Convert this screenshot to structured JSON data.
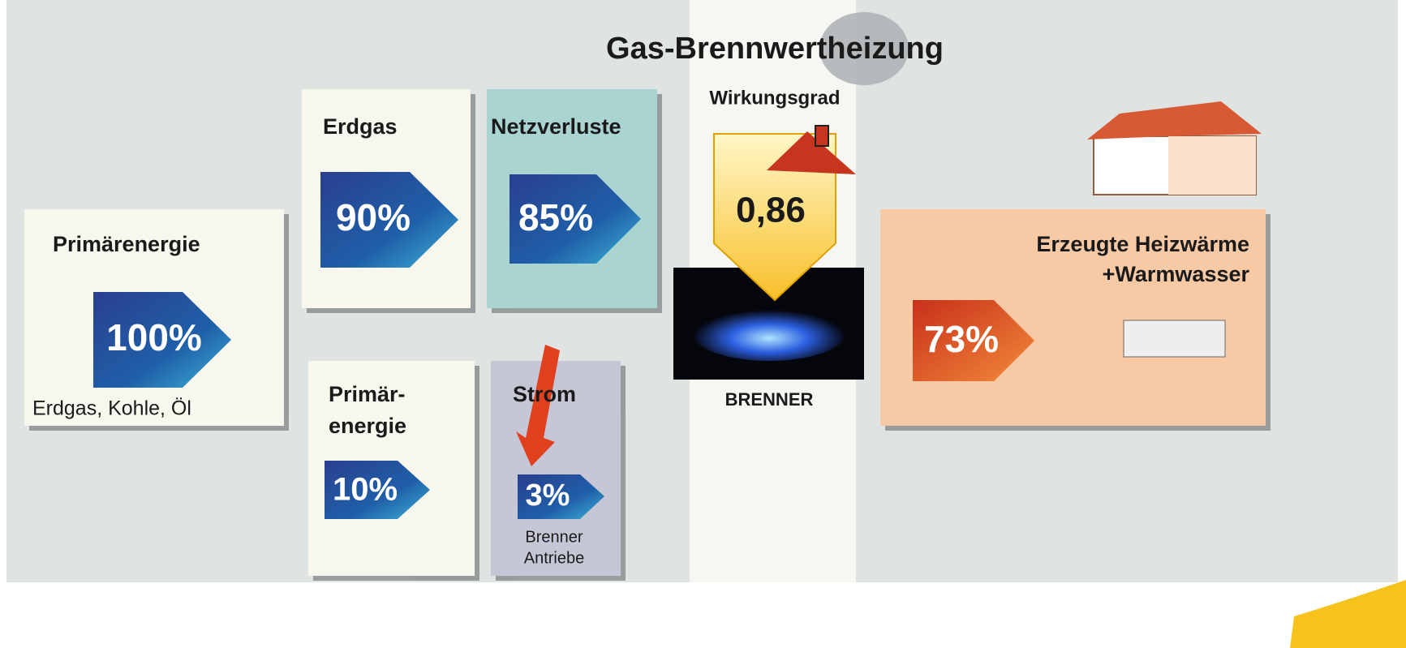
{
  "title": "Gas-Brennwertheizung",
  "boiler": {
    "label": "Wirkungsgrad",
    "efficiency": "0,86",
    "caption": "BRENNER"
  },
  "boxes": [
    {
      "title": [
        "Primärenergie"
      ],
      "value": "100%",
      "note": [
        "Erdgas, Kohle, Öl"
      ]
    },
    {
      "title": [
        "Erdgas"
      ],
      "value": "90%"
    },
    {
      "title": [
        "Netzverluste"
      ],
      "value": "85%"
    },
    {
      "title": [
        "Primär-",
        "energie"
      ],
      "value": "10%"
    },
    {
      "title": [
        "Strom"
      ],
      "value": "3%",
      "note": [
        "Brenner",
        "Antriebe"
      ]
    },
    {
      "title": [
        "Erzeugte Heizwärme",
        "+Warmwasser"
      ],
      "value": "73%"
    }
  ]
}
